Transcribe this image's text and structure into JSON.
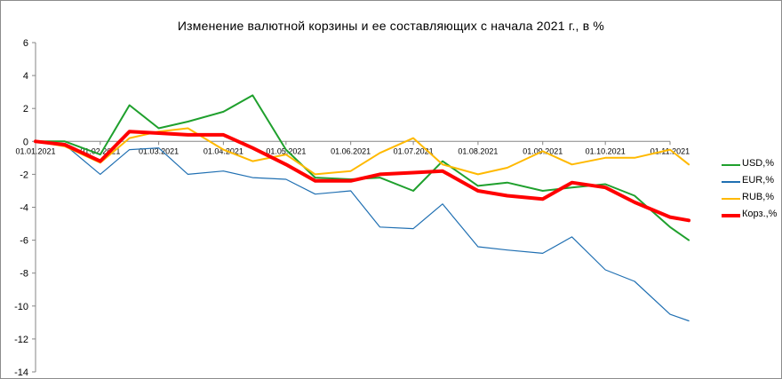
{
  "chart_data": {
    "type": "line",
    "title": "Изменение валютной корзины и ее составляющих с начала 2021 г., в %",
    "xlabel": "",
    "ylabel": "",
    "ylim": [
      -14,
      6
    ],
    "yticks": [
      6,
      4,
      2,
      0,
      -2,
      -4,
      -6,
      -8,
      -10,
      -12,
      -14
    ],
    "ytick_labels": [
      "6",
      "4",
      "2",
      "0",
      "-2",
      "-4",
      "-6",
      "-8",
      "-10",
      "-12",
      "-14"
    ],
    "xticks": [
      "01.01.2021",
      "01.02.2021",
      "01.03.2021",
      "01.04.2021",
      "01.05.2021",
      "01.06.2021",
      "01.07.2021",
      "01.08.2021",
      "01.09.2021",
      "01.10.2021",
      "01.11.2021"
    ],
    "x": [
      "01.01.2021",
      "15.01.2021",
      "01.02.2021",
      "15.02.2021",
      "01.03.2021",
      "15.03.2021",
      "01.04.2021",
      "15.04.2021",
      "01.05.2021",
      "15.05.2021",
      "01.06.2021",
      "15.06.2021",
      "01.07.2021",
      "15.07.2021",
      "01.08.2021",
      "15.08.2021",
      "01.09.2021",
      "15.09.2021",
      "01.10.2021",
      "15.10.2021",
      "01.11.2021",
      "10.11.2021"
    ],
    "grid": false,
    "legend_position": "right",
    "series": [
      {
        "name": "USD,%",
        "color": "#1fa02d",
        "width": 2,
        "values": [
          0,
          0,
          -0.8,
          2.2,
          0.8,
          1.2,
          1.8,
          2.8,
          -0.5,
          -2.2,
          -2.3,
          -2.2,
          -3.0,
          -1.2,
          -2.7,
          -2.5,
          -3.0,
          -2.8,
          -2.6,
          -3.3,
          -5.2,
          -6.0
        ]
      },
      {
        "name": "EUR,%",
        "color": "#1f6fb2",
        "width": 1.2,
        "values": [
          0,
          -0.2,
          -2.0,
          -0.5,
          -0.4,
          -2.0,
          -1.8,
          -2.2,
          -2.3,
          -3.2,
          -3.0,
          -5.2,
          -5.3,
          -3.8,
          -6.4,
          -6.6,
          -6.8,
          -5.8,
          -7.8,
          -8.5,
          -10.5,
          -10.9
        ]
      },
      {
        "name": "RUB,%",
        "color": "#ffb900",
        "width": 2,
        "values": [
          0,
          -0.3,
          -1.3,
          0.2,
          0.6,
          0.8,
          -0.5,
          -1.2,
          -0.8,
          -2.0,
          -1.8,
          -0.7,
          0.2,
          -1.4,
          -2.0,
          -1.6,
          -0.6,
          -1.4,
          -1.0,
          -1.0,
          -0.5,
          -1.4
        ]
      },
      {
        "name": "Корз.,%",
        "color": "#ff0000",
        "width": 4,
        "values": [
          0,
          -0.2,
          -1.2,
          0.6,
          0.5,
          0.4,
          0.4,
          -0.4,
          -1.4,
          -2.4,
          -2.4,
          -2.0,
          -1.9,
          -1.8,
          -3.0,
          -3.3,
          -3.5,
          -2.5,
          -2.8,
          -3.7,
          -4.6,
          -4.8
        ]
      }
    ]
  }
}
